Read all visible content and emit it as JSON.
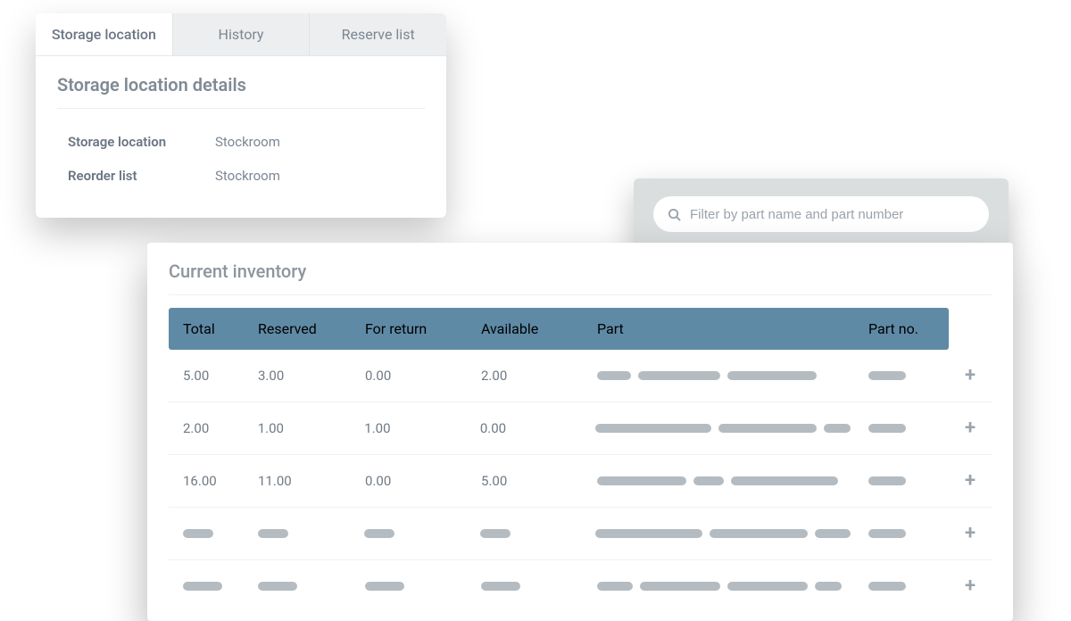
{
  "storage_card": {
    "tabs": [
      {
        "label": "Storage location",
        "active": true
      },
      {
        "label": "History",
        "active": false
      },
      {
        "label": "Reserve list",
        "active": false
      }
    ],
    "title": "Storage location details",
    "rows": [
      {
        "label": "Storage location",
        "value": "Stockroom"
      },
      {
        "label": "Reorder list",
        "value": "Stockroom"
      }
    ]
  },
  "filter": {
    "placeholder": "Filter by part name and part number"
  },
  "inventory": {
    "title": "Current inventory",
    "columns": {
      "total": "Total",
      "reserved": "Reserved",
      "for_return": "For return",
      "available": "Available",
      "part": "Part",
      "part_no": "Part no."
    },
    "header_bg": "#5f8aa6",
    "rows": [
      {
        "total": "5.00",
        "reserved": "3.00",
        "for_return": "0.00",
        "available": "2.00",
        "part_placeholders": [
          38,
          92,
          100
        ],
        "partno_placeholder": 42
      },
      {
        "total": "2.00",
        "reserved": "1.00",
        "for_return": "1.00",
        "available": "0.00",
        "part_placeholders": [
          130,
          110,
          30
        ],
        "partno_placeholder": 42
      },
      {
        "total": "16.00",
        "reserved": "11.00",
        "for_return": "0.00",
        "available": "5.00",
        "part_placeholders": [
          100,
          34,
          120
        ],
        "partno_placeholder": 42
      },
      {
        "total": null,
        "reserved": null,
        "for_return": null,
        "available": null,
        "num_placeholder": 34,
        "part_placeholders": [
          120,
          110,
          40
        ],
        "partno_placeholder": 42
      },
      {
        "total": null,
        "reserved": null,
        "for_return": null,
        "available": null,
        "num_placeholder": 44,
        "part_placeholders": [
          40,
          90,
          90,
          30
        ],
        "partno_placeholder": 42
      }
    ]
  }
}
